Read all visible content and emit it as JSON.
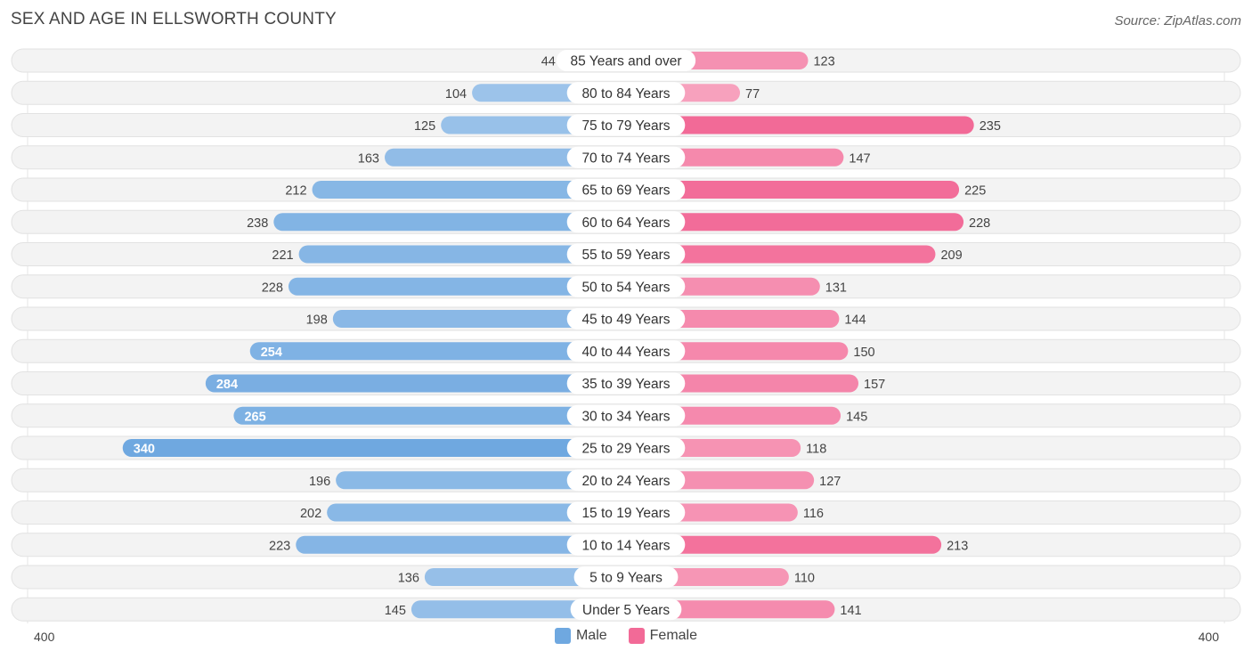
{
  "header": {
    "title": "SEX AND AGE IN ELLSWORTH COUNTY",
    "source": "Source: ZipAtlas.com"
  },
  "colors": {
    "male": "#6fa8e0",
    "female": "#f26a97",
    "row_bg": "#f0f0f0"
  },
  "chart_data": {
    "type": "bar",
    "title": "SEX AND AGE IN ELLSWORTH COUNTY",
    "orientation": "horizontal-diverging",
    "categories": [
      "85 Years and over",
      "80 to 84 Years",
      "75 to 79 Years",
      "70 to 74 Years",
      "65 to 69 Years",
      "60 to 64 Years",
      "55 to 59 Years",
      "50 to 54 Years",
      "45 to 49 Years",
      "40 to 44 Years",
      "35 to 39 Years",
      "30 to 34 Years",
      "25 to 29 Years",
      "20 to 24 Years",
      "15 to 19 Years",
      "10 to 14 Years",
      "5 to 9 Years",
      "Under 5 Years"
    ],
    "series": [
      {
        "name": "Male",
        "values": [
          44,
          104,
          125,
          163,
          212,
          238,
          221,
          228,
          198,
          254,
          284,
          265,
          340,
          196,
          202,
          223,
          136,
          145
        ]
      },
      {
        "name": "Female",
        "values": [
          123,
          77,
          235,
          147,
          225,
          228,
          209,
          131,
          144,
          150,
          157,
          145,
          118,
          127,
          116,
          213,
          110,
          141
        ]
      }
    ],
    "xlim": [
      0,
      400
    ],
    "axis_left_label": "400",
    "axis_right_label": "400",
    "legend": [
      "Male",
      "Female"
    ],
    "legend_position": "bottom-center"
  }
}
